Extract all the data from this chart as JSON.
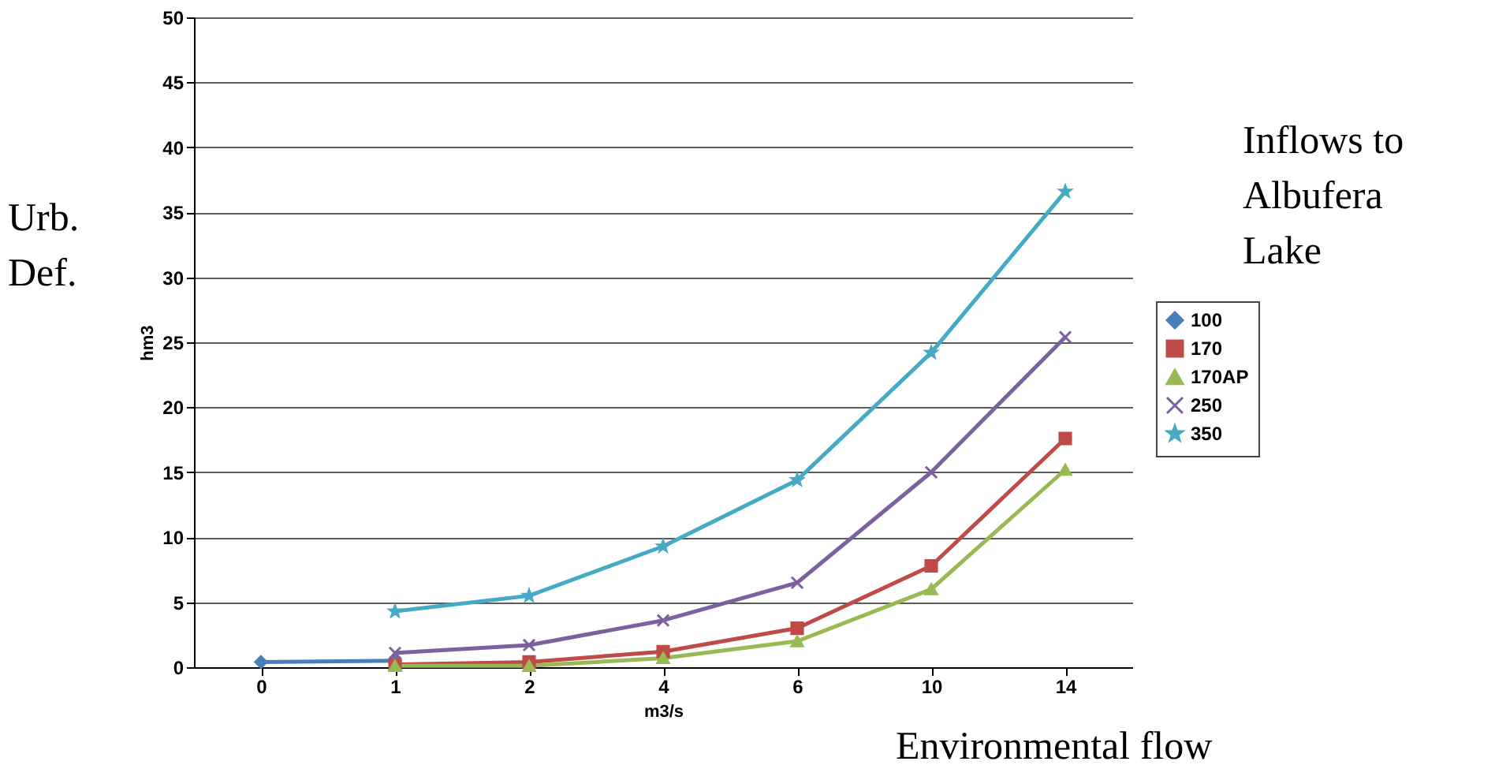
{
  "chart_data": {
    "type": "line",
    "categories": [
      "0",
      "1",
      "2",
      "4",
      "6",
      "10",
      "14"
    ],
    "xlabel": "m3/s",
    "ylabel": "hm3",
    "legend_title": "Inflows to Albufera Lake",
    "annotations": [
      "Urb. Def.",
      "Environmental flow"
    ],
    "ylim": [
      0,
      50
    ],
    "yticks": [
      0,
      5,
      10,
      15,
      20,
      25,
      30,
      35,
      40,
      45,
      50
    ],
    "grid": "y",
    "legend": "right",
    "series": [
      {
        "name": "100",
        "color": "#4a7ebb",
        "marker": "diamond",
        "values": [
          0.4,
          0.5,
          null,
          null,
          null,
          null,
          null
        ]
      },
      {
        "name": "170",
        "color": "#be4b48",
        "marker": "square",
        "values": [
          null,
          0.2,
          0.4,
          1.2,
          3.0,
          7.8,
          17.6
        ]
      },
      {
        "name": "170AP",
        "color": "#98b954",
        "marker": "triangle",
        "values": [
          null,
          0.1,
          0.1,
          0.7,
          2.0,
          6.0,
          15.2
        ]
      },
      {
        "name": "250",
        "color": "#7d60a0",
        "marker": "cross",
        "values": [
          null,
          1.1,
          1.7,
          3.6,
          6.5,
          15.0,
          25.4
        ]
      },
      {
        "name": "350",
        "color": "#46aac5",
        "marker": "star",
        "values": [
          null,
          4.3,
          5.5,
          9.3,
          14.4,
          24.2,
          36.6
        ]
      }
    ]
  }
}
